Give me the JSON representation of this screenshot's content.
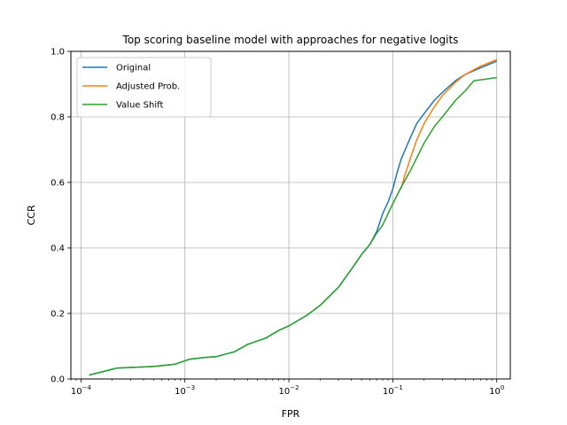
{
  "chart_data": {
    "type": "line",
    "title": "Top scoring baseline model with approaches for negative logits",
    "xlabel": "FPR",
    "ylabel": "CCR",
    "xscale": "log",
    "xlim": [
      8e-05,
      1.35
    ],
    "ylim": [
      0,
      1
    ],
    "x_ticks": [
      {
        "value": 0.0001,
        "base": "10",
        "exp": "−4"
      },
      {
        "value": 0.001,
        "base": "10",
        "exp": "−3"
      },
      {
        "value": 0.01,
        "base": "10",
        "exp": "−2"
      },
      {
        "value": 0.1,
        "base": "10",
        "exp": "−1"
      },
      {
        "value": 1,
        "base": "10",
        "exp": "0"
      }
    ],
    "y_ticks": [
      "0.0",
      "0.2",
      "0.4",
      "0.6",
      "0.8",
      "1.0"
    ],
    "grid": true,
    "legend_position": "top-left",
    "series": [
      {
        "name": "Original",
        "color": "#1f77b4",
        "points": [
          [
            0.00012,
            0.012
          ],
          [
            0.00022,
            0.033
          ],
          [
            0.0005,
            0.038
          ],
          [
            0.0008,
            0.045
          ],
          [
            0.0011,
            0.06
          ],
          [
            0.0015,
            0.065
          ],
          [
            0.002,
            0.068
          ],
          [
            0.003,
            0.083
          ],
          [
            0.004,
            0.105
          ],
          [
            0.006,
            0.125
          ],
          [
            0.008,
            0.148
          ],
          [
            0.01,
            0.162
          ],
          [
            0.015,
            0.195
          ],
          [
            0.02,
            0.225
          ],
          [
            0.03,
            0.28
          ],
          [
            0.04,
            0.335
          ],
          [
            0.05,
            0.38
          ],
          [
            0.06,
            0.41
          ],
          [
            0.07,
            0.45
          ],
          [
            0.08,
            0.505
          ],
          [
            0.09,
            0.54
          ],
          [
            0.1,
            0.58
          ],
          [
            0.11,
            0.63
          ],
          [
            0.12,
            0.67
          ],
          [
            0.14,
            0.72
          ],
          [
            0.17,
            0.78
          ],
          [
            0.2,
            0.81
          ],
          [
            0.25,
            0.85
          ],
          [
            0.3,
            0.875
          ],
          [
            0.4,
            0.91
          ],
          [
            0.5,
            0.93
          ],
          [
            0.7,
            0.95
          ],
          [
            1.0,
            0.97
          ]
        ]
      },
      {
        "name": "Adjusted Prob.",
        "color": "#ff7f0e",
        "points": [
          [
            0.12,
            0.58
          ],
          [
            0.13,
            0.62
          ],
          [
            0.15,
            0.68
          ],
          [
            0.17,
            0.73
          ],
          [
            0.2,
            0.78
          ],
          [
            0.25,
            0.83
          ],
          [
            0.3,
            0.865
          ],
          [
            0.4,
            0.905
          ],
          [
            0.5,
            0.93
          ],
          [
            0.7,
            0.955
          ],
          [
            1.0,
            0.975
          ]
        ]
      },
      {
        "name": "Value Shift",
        "color": "#2ca02c",
        "points": [
          [
            0.00012,
            0.012
          ],
          [
            0.00022,
            0.033
          ],
          [
            0.0005,
            0.038
          ],
          [
            0.0008,
            0.045
          ],
          [
            0.0011,
            0.06
          ],
          [
            0.0015,
            0.065
          ],
          [
            0.002,
            0.068
          ],
          [
            0.003,
            0.083
          ],
          [
            0.004,
            0.105
          ],
          [
            0.006,
            0.125
          ],
          [
            0.008,
            0.148
          ],
          [
            0.01,
            0.162
          ],
          [
            0.015,
            0.195
          ],
          [
            0.02,
            0.225
          ],
          [
            0.03,
            0.28
          ],
          [
            0.04,
            0.335
          ],
          [
            0.05,
            0.38
          ],
          [
            0.06,
            0.41
          ],
          [
            0.07,
            0.445
          ],
          [
            0.08,
            0.47
          ],
          [
            0.1,
            0.535
          ],
          [
            0.12,
            0.585
          ],
          [
            0.15,
            0.64
          ],
          [
            0.2,
            0.72
          ],
          [
            0.25,
            0.77
          ],
          [
            0.3,
            0.8
          ],
          [
            0.4,
            0.85
          ],
          [
            0.5,
            0.88
          ],
          [
            0.6,
            0.91
          ],
          [
            1.0,
            0.92
          ]
        ]
      }
    ]
  }
}
